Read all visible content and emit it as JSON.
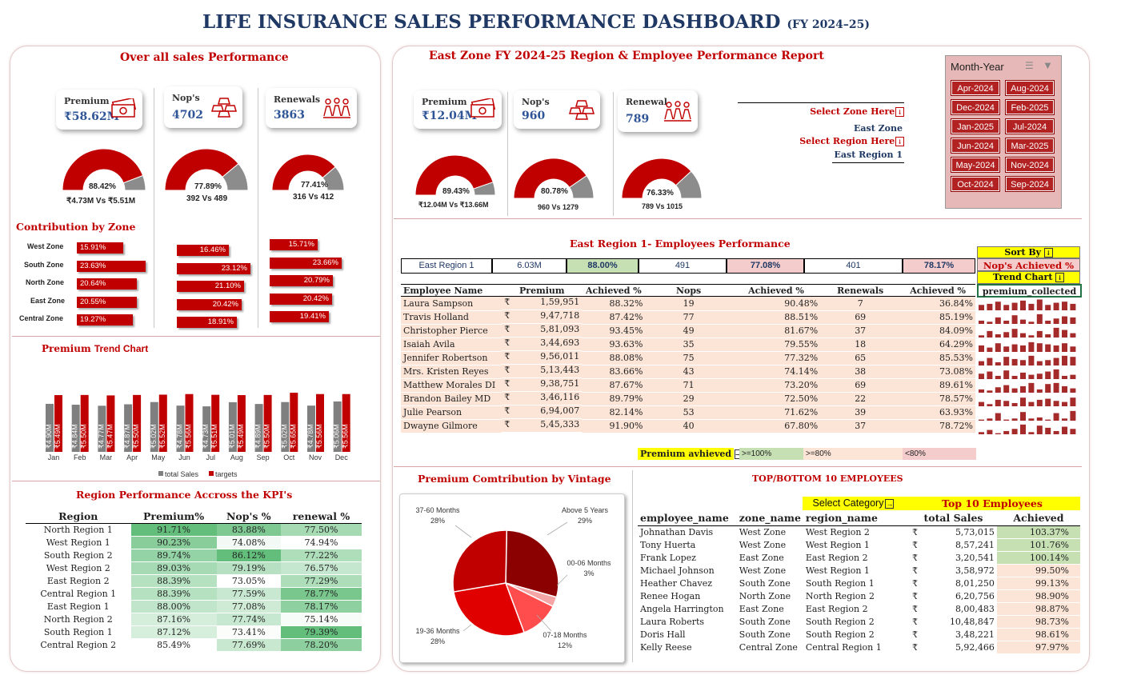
{
  "title": "LIFE INSURANCE SALES PERFORMANCE DASHBOARD",
  "title_suffix": "(FY 2024–25)",
  "overall": {
    "title": "Over all sales Performance",
    "cards": [
      {
        "label": "Premium",
        "value": "₹58.62M",
        "icon": "money-icon"
      },
      {
        "label": "Nop's",
        "value": "4702",
        "icon": "gold-bars-icon"
      },
      {
        "label": "Renewals",
        "value": "3863",
        "icon": "people-icon"
      }
    ],
    "gauges": [
      {
        "pct": "88.42%",
        "fraction": 0.8842,
        "sub": "₹4.73M Vs ₹5.51M"
      },
      {
        "pct": "77.89%",
        "fraction": 0.7789,
        "sub": "392 Vs 489"
      },
      {
        "pct": "77.41%",
        "fraction": 0.7741,
        "sub": "316 Vs 412"
      }
    ],
    "zone_title": "Contribution  by Zone",
    "zones": [
      "West Zone",
      "South Zone",
      "North Zone",
      "East Zone",
      "Central Zone"
    ],
    "zone_values": [
      [
        "15.91%",
        "23.63%",
        "20.64%",
        "20.55%",
        "19.27%"
      ],
      [
        "16.46%",
        "23.12%",
        "21.10%",
        "20.42%",
        "18.91%"
      ],
      [
        "15.71%",
        "23.66%",
        "20.79%",
        "20.42%",
        "19.41%"
      ]
    ]
  },
  "trend": {
    "title_a": "Premium ",
    "title_b": "Trend Chart",
    "legend": [
      "total Sales",
      "targets"
    ]
  },
  "chart_data": {
    "type": "bar",
    "categories": [
      "Jan",
      "Feb",
      "Mar",
      "Apr",
      "May",
      "Jun",
      "Jul",
      "Aug",
      "Sep",
      "Oct",
      "Nov",
      "Dec"
    ],
    "series": [
      {
        "name": "total Sales",
        "values": [
          4.9,
          4.84,
          4.77,
          4.87,
          5.02,
          4.78,
          4.73,
          5.01,
          4.89,
          5.02,
          4.78,
          5.06
        ],
        "labels": [
          "₹4.90M",
          "₹4.84M",
          "₹4.77M",
          "₹4.87M",
          "₹5.02M",
          "₹4.78M",
          "₹4.73M",
          "₹5.01M",
          "₹4.89M",
          "₹5.02M",
          "₹4.78M",
          "₹5.06M"
        ],
        "color": "#7f7f7f"
      },
      {
        "name": "targets",
        "values": [
          5.49,
          5.5,
          5.47,
          5.5,
          5.52,
          5.56,
          5.51,
          5.49,
          5.5,
          5.65,
          5.56,
          5.56
        ],
        "labels": [
          "₹5.49M",
          "₹5.50M",
          "₹5.47M",
          "₹5.50M",
          "₹5.52M",
          "₹5.56M",
          "₹5.51M",
          "₹5.49M",
          "₹5.50M",
          "₹5.65M",
          "₹5.56M",
          "₹5.56M"
        ],
        "color": "#c00000"
      }
    ],
    "legend": "bottom"
  },
  "region_kpi": {
    "title": "Region Performance Accross the KPI's",
    "headers": [
      "Region",
      "Premium%",
      "Nop's %",
      "renewal %"
    ],
    "rows": [
      [
        "North Region 1",
        "91.71%",
        "83.88%",
        "77.50%"
      ],
      [
        "West Region 1",
        "90.23%",
        "74.08%",
        "74.94%"
      ],
      [
        "South Region 2",
        "89.74%",
        "86.12%",
        "77.22%"
      ],
      [
        "West Region 2",
        "89.03%",
        "79.19%",
        "76.57%"
      ],
      [
        "East Region 2",
        "88.39%",
        "73.05%",
        "77.29%"
      ],
      [
        "Central Region 1",
        "88.39%",
        "77.59%",
        "78.77%"
      ],
      [
        "East Region 1",
        "88.00%",
        "77.08%",
        "78.17%"
      ],
      [
        "North Region 2",
        "87.16%",
        "77.74%",
        "75.14%"
      ],
      [
        "South Region 1",
        "87.12%",
        "73.41%",
        "79.39%"
      ],
      [
        "Central Region 2",
        "85.49%",
        "77.69%",
        "78.20%"
      ]
    ]
  },
  "east": {
    "title": "East Zone FY 2024-25 Region & Employee Performance Report",
    "cards": [
      {
        "label": "Premium",
        "value": "₹12.04M",
        "icon": "money-icon"
      },
      {
        "label": "Nop's",
        "value": "960",
        "icon": "gold-bars-icon"
      },
      {
        "label": "Renewal",
        "value": "789",
        "icon": "people-icon"
      }
    ],
    "gauges": [
      {
        "pct": "89.43%",
        "fraction": 0.8943,
        "sub": "₹12.04M Vs ₹13.66M"
      },
      {
        "pct": "80.78%",
        "fraction": 0.8078,
        "sub": "960 Vs 1279"
      },
      {
        "pct": "76.33%",
        "fraction": 0.7633,
        "sub": "789 Vs 1015"
      }
    ],
    "select_zone": "Select Zone Here",
    "zone": "East Zone",
    "select_region": "Select Region Here",
    "region": "East Region 1"
  },
  "slicer": {
    "title": "Month-Year",
    "items": [
      "Apr-2024",
      "Aug-2024",
      "Dec-2024",
      "Feb-2025",
      "Jan-2025",
      "Jul-2024",
      "Jun-2024",
      "Mar-2025",
      "May-2024",
      "Nov-2024",
      "Oct-2024",
      "Sep-2024"
    ]
  },
  "employees": {
    "title": "East Region 1- Employees Performance",
    "summary": [
      "East Region 1",
      "6.03M",
      "88.00%",
      "491",
      "77.08%",
      "401",
      "78.17%"
    ],
    "headers": [
      "Employee Name",
      "Premium",
      "Achieved %",
      "Nops",
      "Achieved %",
      "Renewals",
      "Achieved %"
    ],
    "rows": [
      [
        "Laura Sampson",
        "1,59,951",
        "88.32%",
        "19",
        "90.48%",
        "7",
        "36.84%"
      ],
      [
        "Travis Holland",
        "9,47,718",
        "87.42%",
        "77",
        "88.51%",
        "69",
        "85.19%"
      ],
      [
        "Christopher Pierce",
        "5,81,093",
        "93.45%",
        "49",
        "81.67%",
        "37",
        "84.09%"
      ],
      [
        "Isaiah Avila",
        "3,44,693",
        "93.63%",
        "35",
        "79.55%",
        "18",
        "64.29%"
      ],
      [
        "Jennifer Robertson",
        "9,56,011",
        "88.08%",
        "75",
        "77.32%",
        "65",
        "85.53%"
      ],
      [
        "Mrs. Kristen Reyes",
        "5,13,443",
        "83.66%",
        "43",
        "74.14%",
        "38",
        "73.08%"
      ],
      [
        "Matthew Morales DI",
        "9,38,751",
        "87.67%",
        "71",
        "73.20%",
        "69",
        "89.61%"
      ],
      [
        "Brandon Bailey MD",
        "3,46,116",
        "89.79%",
        "29",
        "72.50%",
        "22",
        "78.57%"
      ],
      [
        "Julie Pearson",
        "6,94,007",
        "82.14%",
        "53",
        "71.62%",
        "39",
        "63.93%"
      ],
      [
        "Dwayne Gilmore",
        "5,45,333",
        "91.90%",
        "40",
        "67.80%",
        "37",
        "78.72%"
      ]
    ],
    "currency": "₹",
    "sort_by": "Sort By",
    "sort_value": "Nop's Achieved %",
    "trend_chart": "Trend Chart",
    "trend_value": "premium_collected",
    "legend_title": "Premium avhieved",
    "legend_items": [
      ">=100%",
      ">=80%",
      "<80%"
    ]
  },
  "vintage": {
    "title": "Premium Comtribution by Vintage",
    "slices": [
      {
        "name": "Above 5 Years",
        "pct": "29%",
        "value": 29
      },
      {
        "name": "00-06 Months",
        "pct": "3%",
        "value": 3
      },
      {
        "name": "07-18 Months",
        "pct": "12%",
        "value": 12
      },
      {
        "name": "19-36 Months",
        "pct": "28%",
        "value": 28
      },
      {
        "name": "37-60 Months",
        "pct": "28%",
        "value": 28
      }
    ]
  },
  "top10": {
    "title": "TOP/BOTTOM 10 EMPLOYEES",
    "select_category": "Select Category",
    "category": "Top 10 Employees",
    "headers": [
      "employee_name",
      "zone_name",
      "region_name",
      "total Sales",
      "Achieved"
    ],
    "rows": [
      [
        "Johnathan Davis",
        "West Zone",
        "West Region 2",
        "5,73,015",
        "103.37%"
      ],
      [
        "Tony Huerta",
        "West Zone",
        "West Region 1",
        "8,57,241",
        "101.76%"
      ],
      [
        "Frank Lopez",
        "East Zone",
        "East Region 2",
        "3,20,541",
        "100.14%"
      ],
      [
        "Michael Johnson",
        "West Zone",
        "West Region 1",
        "3,58,972",
        "99.50%"
      ],
      [
        "Heather Chavez",
        "South Zone",
        "South Region 1",
        "8,01,250",
        "99.13%"
      ],
      [
        "Renee Hogan",
        "North Zone",
        "North Region 2",
        "6,20,756",
        "98.90%"
      ],
      [
        "Angela Harrington",
        "East Zone",
        "East Region 2",
        "8,00,483",
        "98.87%"
      ],
      [
        "Laura Roberts",
        "South Zone",
        "South Region 2",
        "10,48,847",
        "98.73%"
      ],
      [
        "Doris Hall",
        "South Zone",
        "South Region 2",
        "3,48,221",
        "98.61%"
      ],
      [
        "Kelly Reese",
        "Central Zone",
        "Central Region 1",
        "5,92,466",
        "97.97%"
      ]
    ],
    "currency": "₹"
  }
}
